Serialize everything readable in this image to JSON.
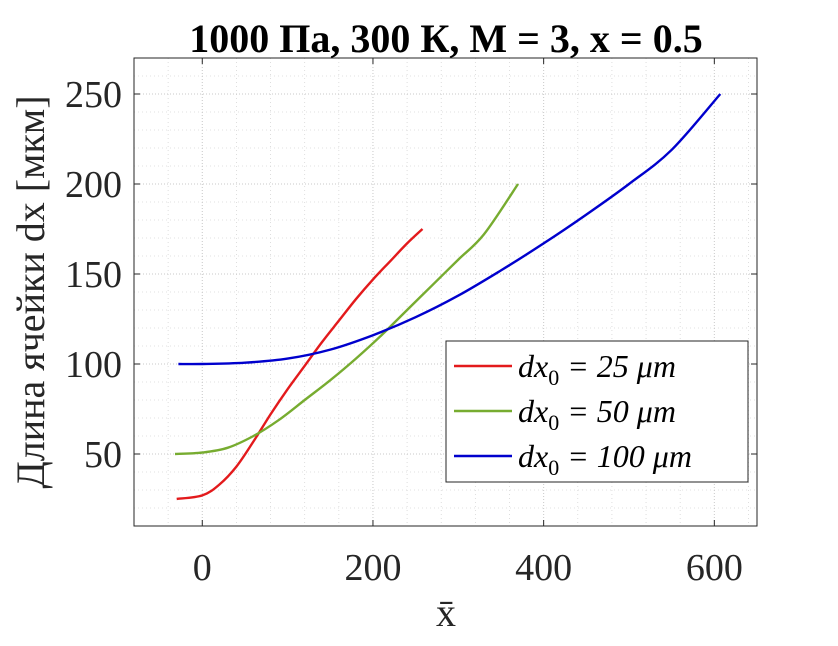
{
  "chart_data": {
    "type": "line",
    "title": "1000 Па, 300 К, М = 3, x = 0.5",
    "xlabel": "x̄",
    "ylabel": "Длина ячейки dx [мкм]",
    "xlim": [
      -80,
      650
    ],
    "ylim": [
      10,
      270
    ],
    "xticks": [
      0,
      200,
      400,
      600
    ],
    "yticks": [
      50,
      100,
      150,
      200,
      250
    ],
    "grid": true,
    "minor_grid": true,
    "legend_position": "bottom-right",
    "series": [
      {
        "name": "dx₀ = 25 μm",
        "label_main": "dx",
        "label_sub": "0",
        "label_rest": " = 25 μm",
        "color": "#e31a1c",
        "x": [
          -30,
          0,
          20,
          40,
          60,
          80,
          100,
          120,
          140,
          160,
          180,
          200,
          220,
          240,
          258
        ],
        "y": [
          25,
          27,
          33,
          43,
          57,
          72,
          86,
          99,
          112,
          124,
          136,
          147,
          157,
          167,
          175
        ]
      },
      {
        "name": "dx₀ = 50 μm",
        "label_main": "dx",
        "label_sub": "0",
        "label_rest": " = 50 μm",
        "color": "#77ac30",
        "x": [
          -32,
          0,
          30,
          60,
          90,
          120,
          150,
          180,
          210,
          240,
          270,
          300,
          330,
          370
        ],
        "y": [
          50,
          50.8,
          53.5,
          60,
          69,
          80,
          91,
          103,
          116,
          130,
          144,
          158,
          172,
          200
        ]
      },
      {
        "name": "dx₀ = 100 μm",
        "label_main": "dx",
        "label_sub": "0",
        "label_rest": " = 100 μm",
        "color": "#0000cd",
        "x": [
          -28,
          0,
          50,
          100,
          150,
          200,
          250,
          300,
          350,
          400,
          450,
          500,
          550,
          607
        ],
        "y": [
          100,
          100,
          100.7,
          103,
          108,
          116,
          126,
          138,
          152,
          167,
          183,
          200,
          219,
          250
        ]
      }
    ]
  }
}
